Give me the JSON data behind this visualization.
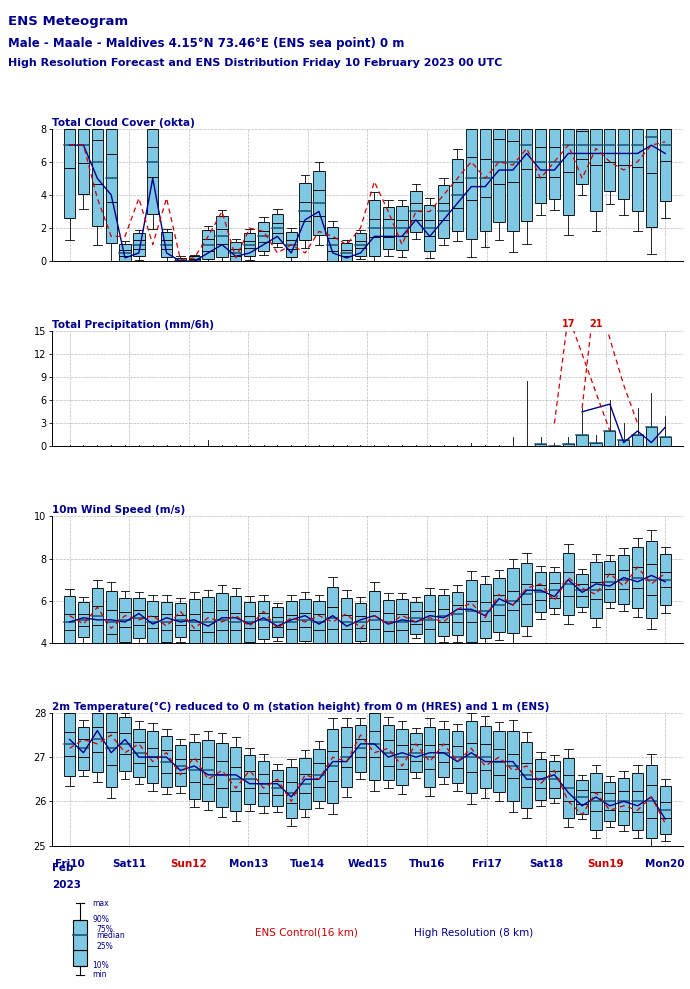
{
  "title_line1": "ENS Meteogram",
  "title_line2": "Male - Maale - Maldives 4.15°N 73.46°E (ENS sea point) 0 m",
  "title_line3": "High Resolution Forecast and ENS Distribution Friday 10 February 2023 00 UTC",
  "x_labels": [
    "Fri10",
    "Sat11",
    "Sun12",
    "Mon13",
    "Tue14",
    "Wed15",
    "Thu16",
    "Fri17",
    "Sat18",
    "Sun19",
    "Mon20"
  ],
  "x_label_colors": [
    "#00008B",
    "#00008B",
    "#CC0000",
    "#00008B",
    "#00008B",
    "#00008B",
    "#00008B",
    "#00008B",
    "#00008B",
    "#CC0000",
    "#00008B"
  ],
  "panel1_title": "Total Cloud Cover (okta)",
  "panel2_title": "Total Precipitation (mm/6h)",
  "panel3_title": "10m Wind Speed (m/s)",
  "panel4_title": "2m Temperature(°C) reduced to 0 m (station height) from 0 m (HRES) and 1 m (ENS)",
  "panel1_ylim": [
    0,
    8
  ],
  "panel2_ylim": [
    0,
    15
  ],
  "panel3_ylim": [
    4,
    10
  ],
  "panel4_ylim": [
    25,
    28
  ],
  "panel1_yticks": [
    0,
    2,
    4,
    6,
    8
  ],
  "panel2_yticks": [
    0,
    3,
    6,
    9,
    12,
    15
  ],
  "panel3_yticks": [
    4,
    6,
    8,
    10
  ],
  "panel4_yticks": [
    25,
    26,
    27,
    28
  ],
  "box_color": "#7EC8E3",
  "box_edge_color": "#000000",
  "median_color": "#1A5276",
  "hres_color": "#00008B",
  "ctrl_color": "#CC0000",
  "plot_bg_color": "#FFFFFF",
  "annotation_17": "17",
  "annotation_21": "21",
  "n_steps": 44
}
